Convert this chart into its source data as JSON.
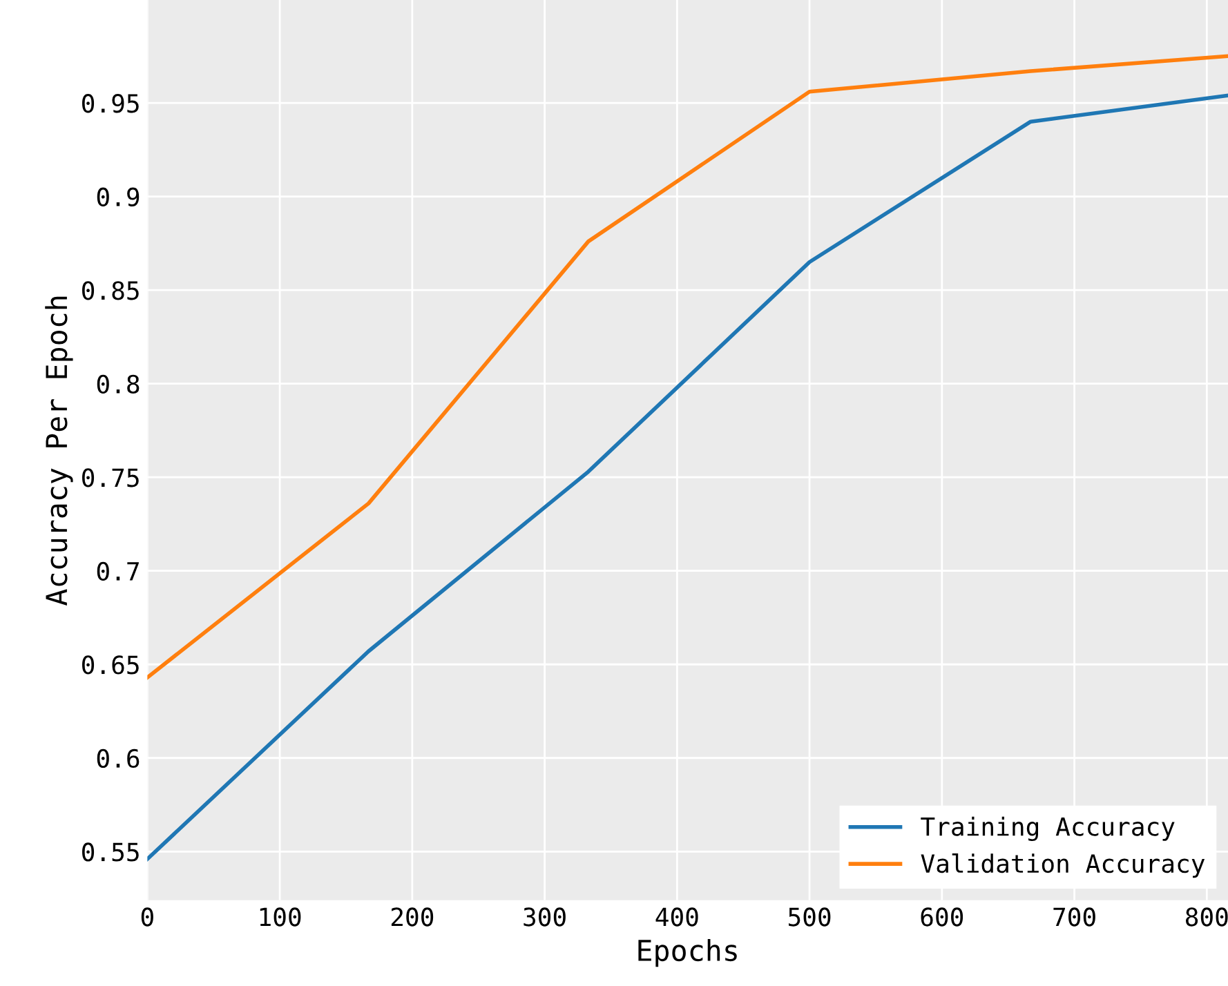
{
  "chart_data": {
    "type": "line",
    "xlabel": "Epochs",
    "ylabel": "Accuracy Per Epoch",
    "x": [
      0,
      167,
      333,
      500,
      667,
      816
    ],
    "series": [
      {
        "name": "Training Accuracy",
        "color": "#1f77b4",
        "values": [
          0.546,
          0.657,
          0.753,
          0.865,
          0.94,
          0.954
        ]
      },
      {
        "name": "Validation Accuracy",
        "color": "#ff7f0e",
        "values": [
          0.643,
          0.736,
          0.876,
          0.956,
          0.967,
          0.975
        ]
      }
    ],
    "xlim": [
      0,
      816
    ],
    "ylim": [
      0.524,
      1.005
    ],
    "xticks": [
      0,
      100,
      200,
      300,
      400,
      500,
      600,
      700,
      800
    ],
    "yticks": [
      0.55,
      0.6,
      0.65,
      0.7,
      0.75,
      0.8,
      0.85,
      0.9,
      0.95
    ],
    "grid": true,
    "legend": "bottom right",
    "marker": "none",
    "line_style": "solid"
  }
}
